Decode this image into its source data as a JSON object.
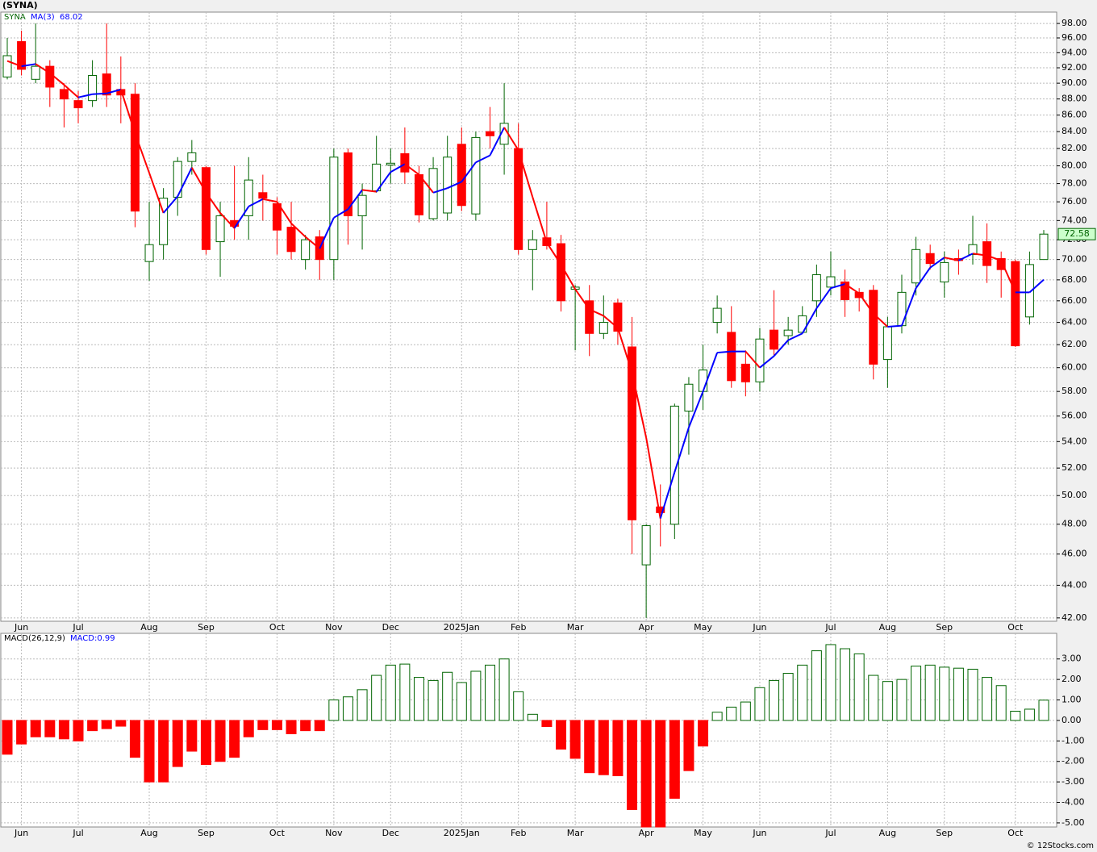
{
  "header": "(SYNA)",
  "footer": "© 12Stocks.com",
  "chart_data": [
    {
      "type": "candlestick",
      "name": "SYNA",
      "log_scale": true,
      "grid": true,
      "up_color": "#006400",
      "down_color": "#ff0000",
      "categories": [
        null,
        "Jun",
        null,
        null,
        null,
        "Jul",
        null,
        null,
        null,
        null,
        "Aug",
        null,
        null,
        null,
        "Sep",
        null,
        null,
        null,
        null,
        "Oct",
        null,
        null,
        null,
        "Nov",
        null,
        null,
        null,
        "Dec",
        null,
        null,
        null,
        null,
        "2025Jan",
        null,
        null,
        null,
        "Feb",
        null,
        null,
        null,
        "Mar",
        null,
        null,
        null,
        null,
        "Apr",
        null,
        null,
        null,
        "May",
        null,
        null,
        null,
        "Jun",
        null,
        null,
        null,
        null,
        "Jul",
        null,
        null,
        null,
        "Aug",
        null,
        null,
        null,
        "Sep",
        null,
        null,
        null,
        null,
        "Oct",
        null,
        null
      ],
      "open": [
        90.8,
        95.5,
        90.5,
        92.2,
        89.2,
        87.8,
        87.8,
        91.2,
        89.2,
        88.6,
        69.8,
        71.5,
        76.5,
        80.5,
        79.8,
        71.8,
        74,
        74.5,
        77,
        75.8,
        73.3,
        70,
        72.3,
        70,
        81.5,
        74.5,
        77.2,
        80.1,
        81.4,
        79,
        74.2,
        74.8,
        82.5,
        74.7,
        84,
        82.5,
        82,
        71,
        72.2,
        71.6,
        67.1,
        66,
        63,
        65.8,
        61.8,
        45.3,
        49.2,
        48,
        56.4,
        58,
        64,
        63.1,
        60.3,
        58.8,
        63.3,
        62.8,
        63.1,
        66,
        67.3,
        67.8,
        66.8,
        67,
        60.7,
        63.7,
        67.7,
        70.6,
        67.8,
        70.1,
        70.5,
        71.8,
        70.1,
        69.8,
        64.5,
        70
      ],
      "high": [
        96,
        97,
        98,
        93,
        90,
        89,
        93,
        98,
        93.5,
        90,
        76,
        77.5,
        81,
        83,
        80,
        76,
        80,
        81,
        79,
        76.5,
        76,
        72.5,
        73,
        82,
        82,
        78,
        83.5,
        82,
        84.5,
        80,
        81,
        83.5,
        84.5,
        84,
        87,
        90,
        85,
        73,
        76,
        72.5,
        67.5,
        67.5,
        66.5,
        66.2,
        64.5,
        48,
        50.8,
        57,
        59.2,
        62,
        66.5,
        65.5,
        61.5,
        63.5,
        67,
        64.5,
        65.5,
        69.5,
        70.8,
        69,
        67.2,
        67.5,
        64.5,
        68.5,
        72.3,
        71.5,
        70.8,
        71,
        74.5,
        73.7,
        70.8,
        70,
        70.8,
        73
      ],
      "low": [
        90.5,
        91,
        90,
        87,
        84.5,
        85,
        87,
        87,
        85,
        73.3,
        67.9,
        70,
        74.5,
        79,
        70.5,
        68.3,
        72,
        72,
        74,
        70.5,
        70,
        69,
        68,
        68,
        71.5,
        71,
        77,
        78,
        78,
        73.8,
        74,
        74,
        75,
        74,
        82,
        79,
        70.5,
        67,
        71,
        65,
        61.5,
        61,
        62.5,
        62,
        46,
        42,
        46.5,
        47,
        53,
        56.5,
        63,
        58.3,
        57.6,
        58,
        61,
        62,
        63,
        64.5,
        66.5,
        64.5,
        65,
        59,
        58.3,
        63,
        66.5,
        69,
        66.3,
        68.5,
        69.5,
        67.7,
        66.3,
        61.8,
        63.8,
        70
      ],
      "close": [
        93.6,
        91.8,
        92.2,
        89.5,
        88,
        86.9,
        91,
        88.5,
        88.5,
        75,
        71.5,
        76.4,
        80.5,
        81.5,
        71,
        74.5,
        73.4,
        78.4,
        76.4,
        73,
        70.8,
        72,
        70,
        81,
        74.5,
        76.7,
        80.2,
        80.3,
        79.3,
        74.6,
        79.7,
        81,
        75.6,
        83.3,
        83.5,
        85,
        71,
        72,
        71.4,
        66,
        67.3,
        63,
        64,
        63.2,
        48.3,
        47.9,
        48.8,
        56.8,
        58.6,
        59.8,
        65.3,
        58.9,
        58.8,
        62.5,
        61.6,
        63.3,
        64.6,
        68.5,
        68.3,
        66.1,
        66.3,
        60.3,
        63.6,
        66.8,
        71,
        69.6,
        69.7,
        69.9,
        71.5,
        69.4,
        69,
        61.9,
        69.5,
        72.58
      ],
      "ma": {
        "name": "MA(3)",
        "up_color": "#0000ff",
        "down_color": "#ff0000",
        "values": [
          92.9,
          92.2,
          92.5,
          91.3,
          89.8,
          88.2,
          88.6,
          88.7,
          89.2,
          83.8,
          79.2,
          74.8,
          76.6,
          79.8,
          77,
          74.8,
          73.2,
          75.5,
          76.3,
          76,
          73.7,
          72.3,
          71.1,
          74.3,
          75.2,
          77.3,
          77.1,
          79.3,
          80.2,
          79,
          77,
          77.5,
          78.2,
          80.4,
          81.2,
          84.5,
          81.8,
          76.5,
          71.7,
          69.5,
          67.1,
          65.2,
          64.6,
          63.5,
          59.6,
          54.3,
          48.4,
          51.7,
          55.1,
          58,
          61.3,
          61.4,
          61.4,
          60,
          61,
          62.4,
          63,
          65.3,
          67.2,
          67.6,
          66.7,
          64.8,
          63.6,
          63.7,
          67.2,
          69.2,
          70.2,
          69.9,
          70.6,
          70.4,
          69.9,
          66.8,
          66.8,
          68.02
        ]
      },
      "ylim": [
        41.8,
        99.6
      ],
      "yticks": [
        {
          "value": 42,
          "label": "42.00"
        },
        {
          "value": 44,
          "label": "44.00"
        },
        {
          "value": 46,
          "label": "46.00"
        },
        {
          "value": 48,
          "label": "48.00"
        },
        {
          "value": 50,
          "label": "50.00"
        },
        {
          "value": 52,
          "label": "52.00"
        },
        {
          "value": 54,
          "label": "54.00"
        },
        {
          "value": 56,
          "label": "56.00"
        },
        {
          "value": 58,
          "label": "58.00"
        },
        {
          "value": 60,
          "label": "60.00"
        },
        {
          "value": 62,
          "label": "62.00"
        },
        {
          "value": 64,
          "label": "64.00"
        },
        {
          "value": 66,
          "label": "66.00"
        },
        {
          "value": 68,
          "label": "68.00"
        },
        {
          "value": 70,
          "label": "70.00"
        },
        {
          "value": 72,
          "label": "72.00"
        },
        {
          "value": 74,
          "label": "74.00"
        },
        {
          "value": 76,
          "label": "76.00"
        },
        {
          "value": 78,
          "label": "78.00"
        },
        {
          "value": 80,
          "label": "80.00"
        },
        {
          "value": 82,
          "label": "82.00"
        },
        {
          "value": 84,
          "label": "84.00"
        },
        {
          "value": 86,
          "label": "86.00"
        },
        {
          "value": 88,
          "label": "88.00"
        },
        {
          "value": 90,
          "label": "90.00"
        },
        {
          "value": 92,
          "label": "92.00"
        },
        {
          "value": 94,
          "label": "94.00"
        },
        {
          "value": 96,
          "label": "96.00"
        },
        {
          "value": 98,
          "label": "98.00"
        }
      ]
    },
    {
      "type": "bar",
      "grid": true,
      "legend": [
        "MACD(26,12,9)",
        "MACD:0.99"
      ],
      "up_color": "#006400",
      "down_color": "#ff0000",
      "categories": [
        null,
        "Jun",
        null,
        null,
        null,
        "Jul",
        null,
        null,
        null,
        null,
        "Aug",
        null,
        null,
        null,
        "Sep",
        null,
        null,
        null,
        null,
        "Oct",
        null,
        null,
        null,
        "Nov",
        null,
        null,
        null,
        "Dec",
        null,
        null,
        null,
        null,
        "2025Jan",
        null,
        null,
        null,
        "Feb",
        null,
        null,
        null,
        "Mar",
        null,
        null,
        null,
        null,
        "Apr",
        null,
        null,
        null,
        "May",
        null,
        null,
        null,
        "Jun",
        null,
        null,
        null,
        null,
        "Jul",
        null,
        null,
        null,
        "Aug",
        null,
        null,
        null,
        "Sep",
        null,
        null,
        null,
        null,
        "Oct",
        null,
        null
      ],
      "values": [
        -1.65,
        -1.15,
        -0.8,
        -0.8,
        -0.9,
        -1.0,
        -0.5,
        -0.4,
        -0.28,
        -1.8,
        -3.0,
        -3.0,
        -2.25,
        -1.5,
        -2.15,
        -2.0,
        -1.8,
        -0.8,
        -0.45,
        -0.45,
        -0.65,
        -0.5,
        -0.5,
        1.0,
        1.15,
        1.5,
        2.2,
        2.7,
        2.75,
        2.1,
        1.95,
        2.35,
        1.85,
        2.4,
        2.7,
        3.0,
        1.4,
        0.3,
        -0.3,
        -1.4,
        -1.85,
        -2.55,
        -2.65,
        -2.7,
        -4.35,
        -5.2,
        -5.2,
        -3.8,
        -2.45,
        -1.25,
        0.4,
        0.65,
        0.9,
        1.6,
        1.95,
        2.3,
        2.7,
        3.4,
        3.7,
        3.5,
        3.25,
        2.2,
        1.9,
        2.0,
        2.65,
        2.7,
        2.6,
        2.55,
        2.5,
        2.1,
        1.7,
        0.45,
        0.55,
        0.99
      ],
      "ylim": [
        -5.2,
        4.25
      ],
      "yticks": [
        {
          "value": -5,
          "label": "-5.00"
        },
        {
          "value": -4,
          "label": "-4.00"
        },
        {
          "value": -3,
          "label": "-3.00"
        },
        {
          "value": -2,
          "label": "-2.00"
        },
        {
          "value": -1,
          "label": "-1.00"
        },
        {
          "value": 0,
          "label": "0.00"
        },
        {
          "value": 1,
          "label": "1.00"
        },
        {
          "value": 2,
          "label": "2.00"
        },
        {
          "value": 3,
          "label": "3.00"
        }
      ]
    }
  ]
}
